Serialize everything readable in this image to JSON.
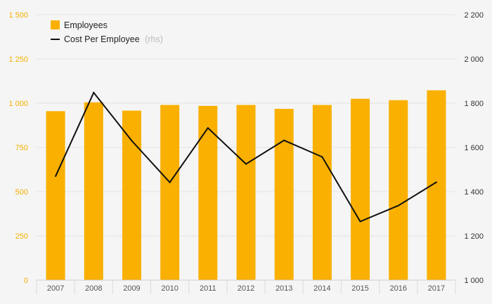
{
  "chart_data": {
    "type": "bar+line",
    "categories": [
      "2007",
      "2008",
      "2009",
      "2010",
      "2011",
      "2012",
      "2013",
      "2014",
      "2015",
      "2016",
      "2017"
    ],
    "series": [
      {
        "name": "Employees",
        "type": "bar",
        "axis": "left",
        "color": "#f9b000",
        "values": [
          955,
          1005,
          958,
          990,
          985,
          990,
          968,
          990,
          1025,
          1017,
          1073
        ]
      },
      {
        "name": "Cost Per Employee",
        "type": "line",
        "axis": "right",
        "color": "#111111",
        "values": [
          1470,
          1848,
          1630,
          1442,
          1688,
          1525,
          1632,
          1557,
          1265,
          1337,
          1443
        ]
      }
    ],
    "legend": {
      "position": "top-left",
      "items": [
        {
          "label": "Employees",
          "suffix": ""
        },
        {
          "label": "Cost Per Employee",
          "suffix": "(rhs)"
        }
      ]
    },
    "y_left": {
      "range": [
        0,
        1500
      ],
      "ticks": [
        0,
        250,
        500,
        750,
        1000,
        1250,
        1500
      ],
      "tick_labels": [
        "0",
        "250",
        "500",
        "750",
        "1 000",
        "1 250",
        "1 500"
      ],
      "label_color": "#f5b000"
    },
    "y_right": {
      "range": [
        1000,
        2200
      ],
      "ticks": [
        1000,
        1200,
        1400,
        1600,
        1800,
        2000,
        2200
      ],
      "tick_labels": [
        "1 000",
        "1 200",
        "1 400",
        "1 600",
        "1 800",
        "2 000",
        "2 200"
      ],
      "label_color": "#333333"
    },
    "grid": true,
    "title": "",
    "xlabel": "",
    "ylabel": ""
  }
}
